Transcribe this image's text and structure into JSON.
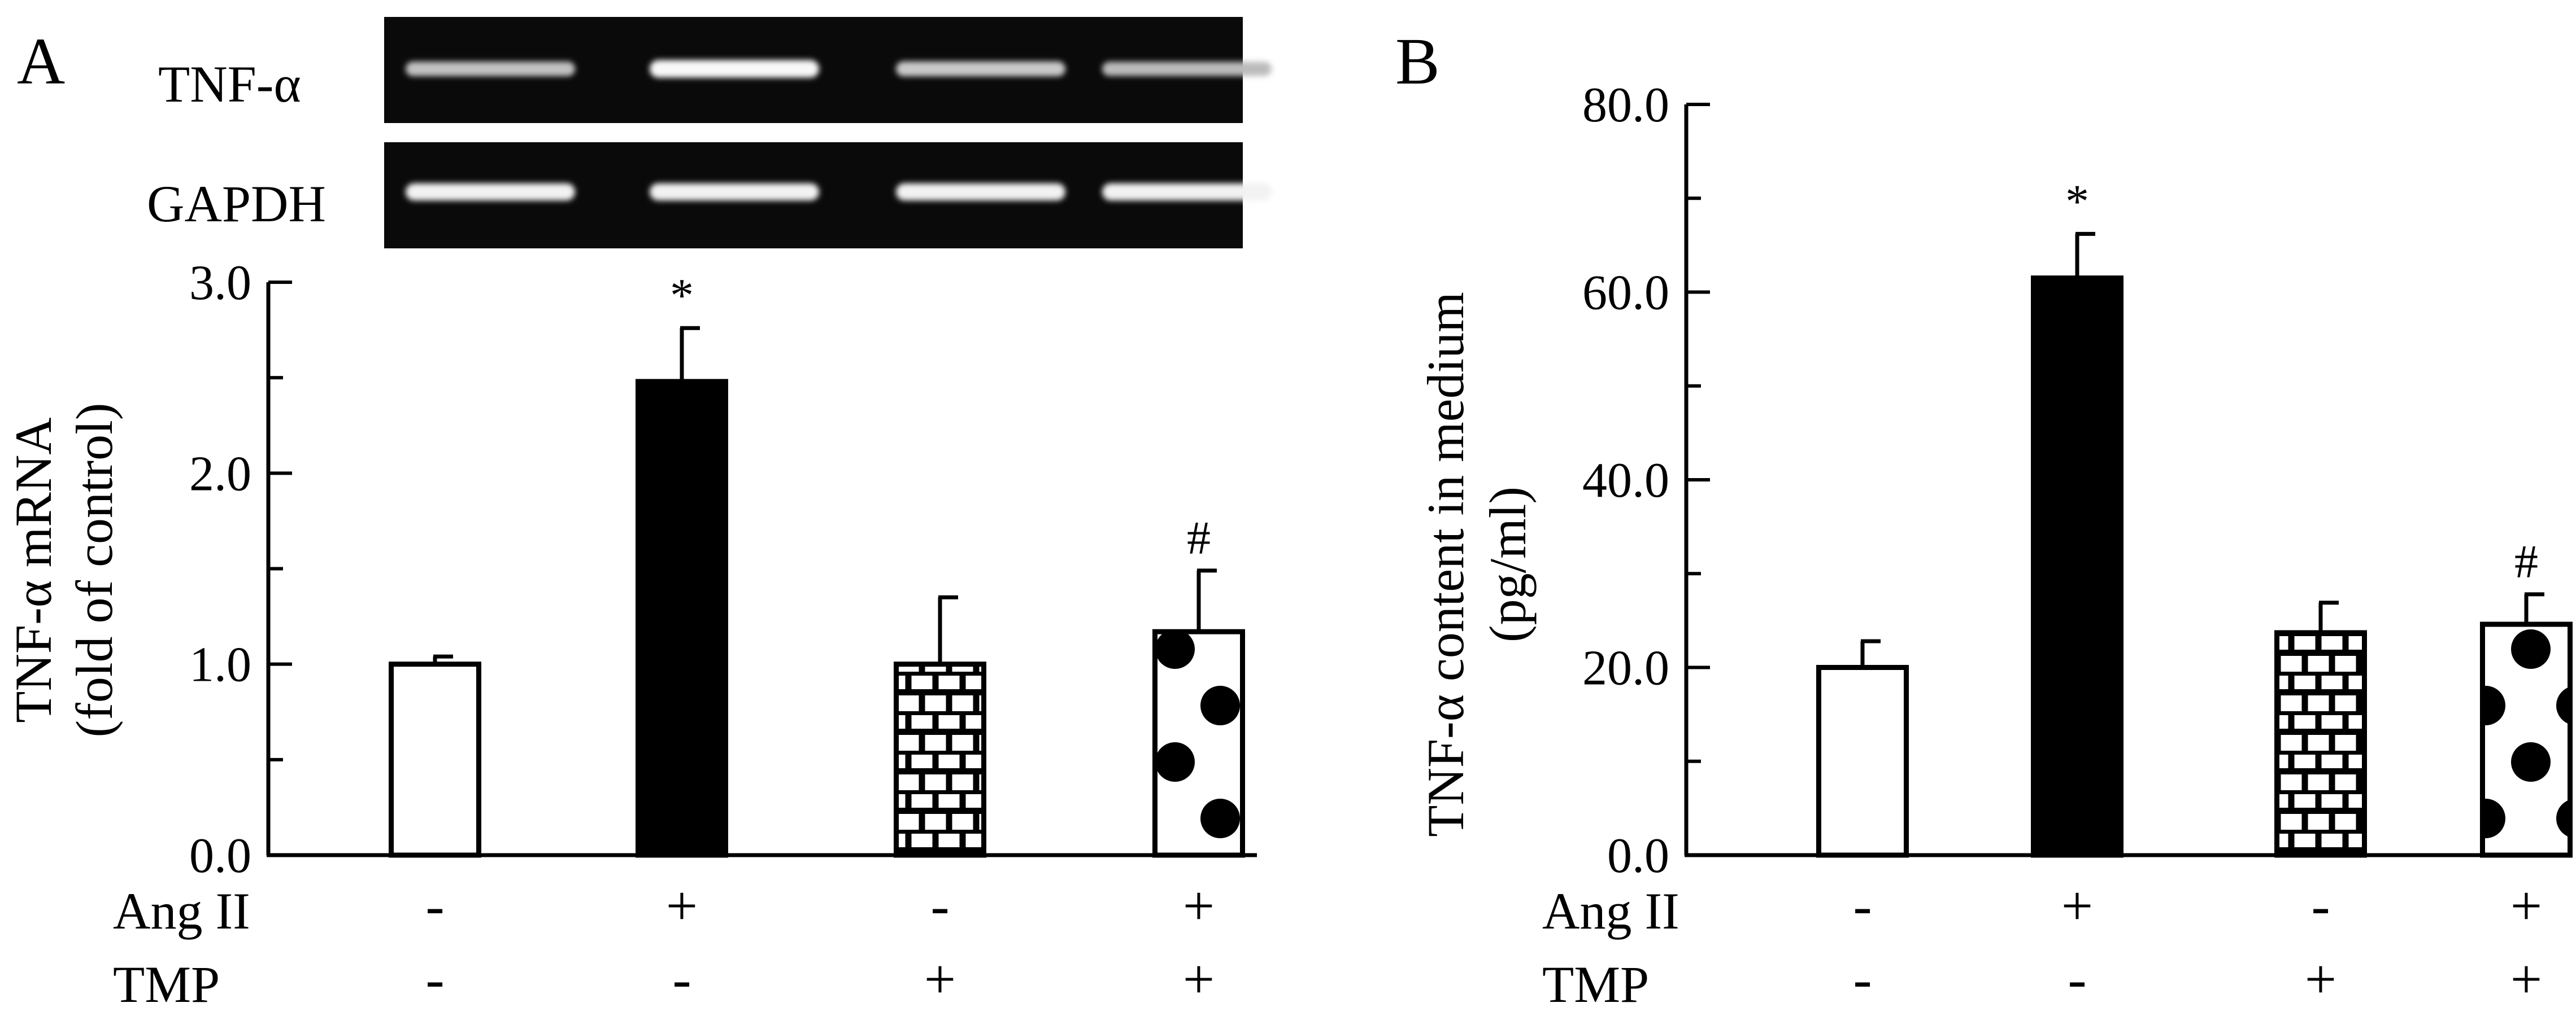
{
  "panels": [
    {
      "letter": "A",
      "gel": {
        "bands": [
          {
            "label": "TNF-α",
            "intensities": [
              0.55,
              0.95,
              0.6,
              0.5
            ]
          },
          {
            "label": "GAPDH",
            "intensities": [
              0.9,
              0.9,
              0.9,
              0.9
            ]
          }
        ]
      },
      "treatment_labels": [
        "Ang II",
        "TMP"
      ]
    },
    {
      "letter": "B",
      "treatment_labels": [
        "Ang II",
        "TMP"
      ]
    }
  ],
  "chart_data": [
    {
      "type": "bar",
      "ylabel_lines": [
        "TNF-α mRNA",
        "(fold of control)"
      ],
      "ylim": [
        0,
        3.0
      ],
      "yticks": [
        "0.0",
        "1.0",
        "2.0",
        "3.0"
      ],
      "groups": [
        {
          "ang_ii": "-",
          "tmp": "-",
          "value": 1.0,
          "error": 0.04,
          "fill": "white",
          "annotation": ""
        },
        {
          "ang_ii": "+",
          "tmp": "-",
          "value": 2.48,
          "error": 0.28,
          "fill": "black",
          "annotation": "*"
        },
        {
          "ang_ii": "-",
          "tmp": "+",
          "value": 1.0,
          "error": 0.35,
          "fill": "brick",
          "annotation": ""
        },
        {
          "ang_ii": "+",
          "tmp": "+",
          "value": 1.17,
          "error": 0.32,
          "fill": "dots",
          "annotation": "#"
        }
      ]
    },
    {
      "type": "bar",
      "ylabel_lines": [
        "TNF-α content in medium",
        "(pg/ml)"
      ],
      "ylim": [
        0,
        80.0
      ],
      "yticks": [
        "0.0",
        "20.0",
        "40.0",
        "60.0",
        "80.0"
      ],
      "groups": [
        {
          "ang_ii": "-",
          "tmp": "-",
          "value": 20.0,
          "error": 2.8,
          "fill": "white",
          "annotation": ""
        },
        {
          "ang_ii": "+",
          "tmp": "-",
          "value": 61.5,
          "error": 4.7,
          "fill": "black",
          "annotation": "*"
        },
        {
          "ang_ii": "-",
          "tmp": "+",
          "value": 23.7,
          "error": 3.2,
          "fill": "brick",
          "annotation": ""
        },
        {
          "ang_ii": "+",
          "tmp": "+",
          "value": 24.6,
          "error": 3.2,
          "fill": "dots",
          "annotation": "#"
        }
      ]
    }
  ]
}
